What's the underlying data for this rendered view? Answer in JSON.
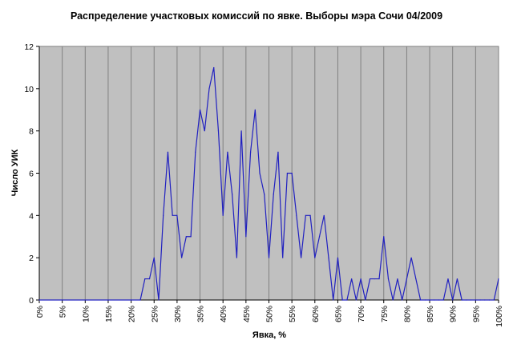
{
  "chart_data": {
    "type": "line",
    "title": "Распределение участковых комиссий по явке. Выборы мэра Сочи 04/2009",
    "xlabel": "Явка, %",
    "ylabel": "Число УИК",
    "xlim": [
      0,
      100
    ],
    "ylim": [
      0,
      12
    ],
    "x_ticks": [
      "0%",
      "5%",
      "10%",
      "15%",
      "20%",
      "25%",
      "30%",
      "35%",
      "40%",
      "45%",
      "50%",
      "55%",
      "60%",
      "65%",
      "70%",
      "75%",
      "80%",
      "85%",
      "90%",
      "95%",
      "100%"
    ],
    "y_ticks": [
      "0",
      "2",
      "4",
      "6",
      "8",
      "10",
      "12"
    ],
    "grid": "vertical",
    "legend": "none",
    "colors": {
      "plot_background": "#c0c0c0",
      "line": "#2020c0",
      "grid": "#808080"
    },
    "series": [
      {
        "x": [
          0,
          22,
          23,
          24,
          25,
          26,
          27,
          28,
          29,
          30,
          31,
          32,
          33,
          34,
          35,
          36,
          37,
          38,
          39,
          40,
          41,
          42,
          43,
          44,
          45,
          46,
          47,
          48,
          49,
          50,
          51,
          52,
          53,
          54,
          55,
          56,
          57,
          58,
          59,
          60,
          61,
          62,
          63,
          64,
          65,
          66,
          67,
          68,
          69,
          70,
          71,
          72,
          73,
          74,
          75,
          76,
          77,
          78,
          79,
          80,
          81,
          82,
          83,
          84,
          85,
          86,
          87,
          88,
          89,
          90,
          91,
          92,
          93,
          94,
          95,
          96,
          97,
          98,
          99,
          100
        ],
        "values": [
          0,
          0,
          1,
          1,
          2,
          0,
          4,
          7,
          4,
          4,
          2,
          3,
          3,
          7,
          9,
          8,
          10,
          11,
          8,
          4,
          7,
          5,
          2,
          8,
          3,
          7,
          9,
          6,
          5,
          2,
          5,
          7,
          2,
          6,
          6,
          4,
          2,
          4,
          4,
          2,
          3,
          4,
          2,
          0,
          2,
          0,
          0,
          1,
          0,
          1,
          0,
          1,
          1,
          1,
          3,
          1,
          0,
          1,
          0,
          1,
          2,
          1,
          0,
          0,
          0,
          0,
          0,
          0,
          1,
          0,
          1,
          0,
          0,
          0,
          0,
          0,
          0,
          0,
          0,
          1
        ]
      }
    ]
  }
}
